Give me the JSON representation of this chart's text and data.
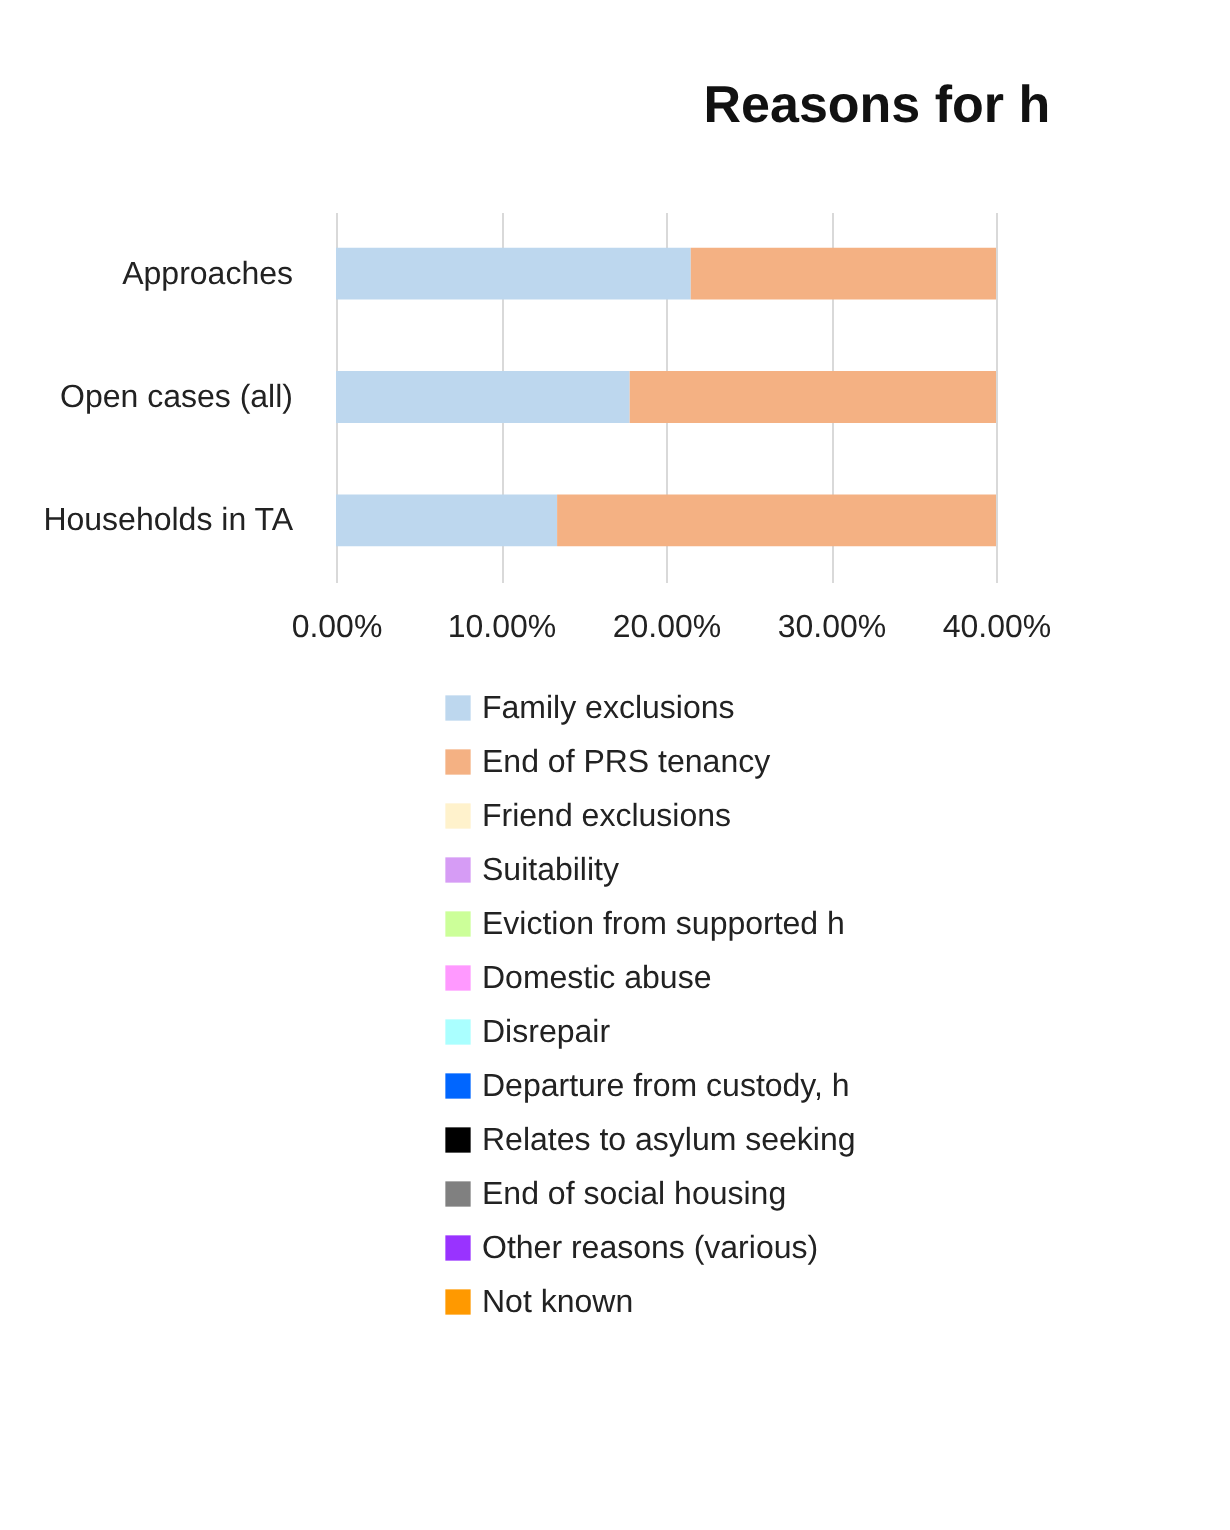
{
  "chart_data": {
    "type": "bar",
    "orientation": "horizontal",
    "stacked": true,
    "title": "Reasons for h",
    "categories": [
      "Approaches",
      "Open cases (all)",
      "Households in TA"
    ],
    "series": [
      {
        "name": "Family exclusions",
        "color": "#bdd7ee",
        "values": [
          21.5,
          17.8,
          13.4
        ]
      },
      {
        "name": "End of PRS tenancy",
        "color": "#f4b183",
        "values": [
          18.5,
          22.2,
          26.6
        ]
      },
      {
        "name": "Friend exclusions",
        "color": "#fff2cc",
        "values": [
          null,
          null,
          null
        ]
      },
      {
        "name": "Suitability",
        "color": "#d69cf5",
        "values": [
          null,
          null,
          null
        ]
      },
      {
        "name": "Eviction from supported h",
        "color": "#ccff99",
        "values": [
          null,
          null,
          null
        ]
      },
      {
        "name": "Domestic abuse",
        "color": "#ff99ff",
        "values": [
          null,
          null,
          null
        ]
      },
      {
        "name": "Disrepair",
        "color": "#aaffff",
        "values": [
          null,
          null,
          null
        ]
      },
      {
        "name": "Departure from custody, h",
        "color": "#0066ff",
        "values": [
          null,
          null,
          null
        ]
      },
      {
        "name": "Relates to asylum seeking",
        "color": "#000000",
        "values": [
          null,
          null,
          null
        ]
      },
      {
        "name": "End of social housing",
        "color": "#808080",
        "values": [
          null,
          null,
          null
        ]
      },
      {
        "name": "Other reasons (various)",
        "color": "#9933ff",
        "values": [
          null,
          null,
          null
        ]
      },
      {
        "name": "Not known",
        "color": "#ff9900",
        "values": [
          null,
          null,
          null
        ]
      }
    ],
    "xlim": [
      0,
      40
    ],
    "xticks": [
      {
        "value": 0,
        "label": "0.00%"
      },
      {
        "value": 10,
        "label": "10.00%"
      },
      {
        "value": 20,
        "label": "20.00%"
      },
      {
        "value": 30,
        "label": "30.00%"
      },
      {
        "value": 40,
        "label": "40.00%"
      }
    ],
    "grid": "x",
    "legend": "bottom"
  }
}
